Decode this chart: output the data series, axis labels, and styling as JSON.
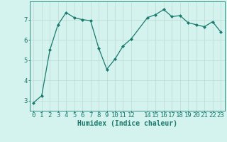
{
  "x": [
    0,
    1,
    2,
    3,
    4,
    5,
    6,
    7,
    8,
    9,
    10,
    11,
    12,
    14,
    15,
    16,
    17,
    18,
    19,
    20,
    21,
    22,
    23
  ],
  "y": [
    2.9,
    3.25,
    5.5,
    6.75,
    7.35,
    7.1,
    7.0,
    6.95,
    5.6,
    4.55,
    5.05,
    5.7,
    6.05,
    7.1,
    7.25,
    7.5,
    7.15,
    7.2,
    6.85,
    6.75,
    6.65,
    6.9,
    6.4
  ],
  "line_color": "#1a7a6e",
  "marker": "D",
  "marker_size": 2.0,
  "bg_color": "#d4f2ee",
  "grid_color": "#c0ddd8",
  "xlabel": "Humidex (Indice chaleur)",
  "ylim": [
    2.5,
    7.9
  ],
  "xlim": [
    -0.5,
    23.5
  ],
  "xticks": [
    0,
    1,
    2,
    3,
    4,
    5,
    6,
    7,
    8,
    9,
    10,
    11,
    12,
    14,
    15,
    16,
    17,
    18,
    19,
    20,
    21,
    22,
    23
  ],
  "yticks": [
    3,
    4,
    5,
    6,
    7
  ],
  "xlabel_fontsize": 7,
  "tick_fontsize": 6.5
}
